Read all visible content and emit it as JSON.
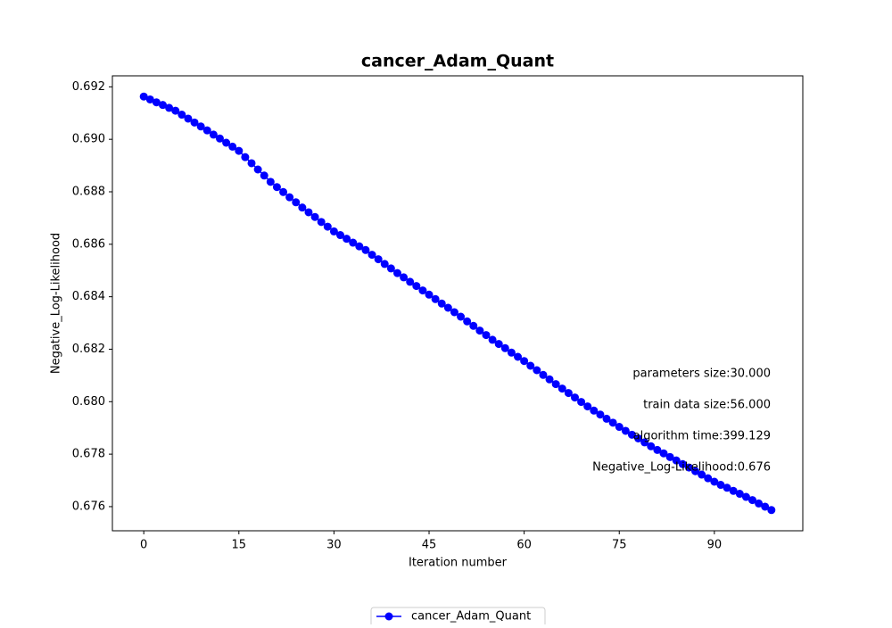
{
  "chart_data": {
    "type": "line",
    "title": "cancer_Adam_Quant",
    "x_label": "Iteration number",
    "y_label": "Negative_Log-Likelihood",
    "x": [
      0,
      1,
      2,
      3,
      4,
      5,
      6,
      7,
      8,
      9,
      10,
      11,
      12,
      13,
      14,
      15,
      16,
      17,
      18,
      19,
      20,
      21,
      22,
      23,
      24,
      25,
      26,
      27,
      28,
      29,
      30,
      31,
      32,
      33,
      34,
      35,
      36,
      37,
      38,
      39,
      40,
      41,
      42,
      43,
      44,
      45,
      46,
      47,
      48,
      49,
      50,
      51,
      52,
      53,
      54,
      55,
      56,
      57,
      58,
      59,
      60,
      61,
      62,
      63,
      64,
      65,
      66,
      67,
      68,
      69,
      70,
      71,
      72,
      73,
      74,
      75,
      76,
      77,
      78,
      79,
      80,
      81,
      82,
      83,
      84,
      85,
      86,
      87,
      88,
      89,
      90,
      91,
      92,
      93,
      94,
      95,
      96,
      97,
      98,
      99
    ],
    "series": [
      {
        "name": "cancer_Adam_Quant",
        "color": "#0000ff",
        "values": [
          0.69163,
          0.69152,
          0.69141,
          0.69131,
          0.6912,
          0.69109,
          0.69094,
          0.69079,
          0.69064,
          0.69049,
          0.69034,
          0.69018,
          0.69003,
          0.68987,
          0.68972,
          0.68956,
          0.68932,
          0.68909,
          0.68885,
          0.68862,
          0.68838,
          0.68818,
          0.68799,
          0.68779,
          0.6876,
          0.6874,
          0.68722,
          0.68704,
          0.68685,
          0.68667,
          0.68649,
          0.68635,
          0.68621,
          0.68606,
          0.68592,
          0.68578,
          0.6856,
          0.68543,
          0.68525,
          0.68508,
          0.6849,
          0.68474,
          0.68457,
          0.68441,
          0.68424,
          0.68408,
          0.68391,
          0.68374,
          0.68358,
          0.68341,
          0.68324,
          0.68306,
          0.68289,
          0.68271,
          0.68254,
          0.68236,
          0.6822,
          0.68204,
          0.68187,
          0.68171,
          0.68155,
          0.68137,
          0.6812,
          0.68102,
          0.68085,
          0.68067,
          0.6805,
          0.68033,
          0.68016,
          0.67999,
          0.67982,
          0.67966,
          0.67951,
          0.67935,
          0.6792,
          0.67904,
          0.67889,
          0.67874,
          0.6786,
          0.67845,
          0.6783,
          0.67816,
          0.67803,
          0.67789,
          0.67776,
          0.67762,
          0.67749,
          0.67735,
          0.67722,
          0.67708,
          0.67695,
          0.67683,
          0.67672,
          0.6766,
          0.67649,
          0.67637,
          0.67625,
          0.67612,
          0.676,
          0.67587
        ]
      }
    ],
    "xlim": [
      -4.95,
      103.95
    ],
    "xticks": [
      0,
      15,
      30,
      45,
      60,
      75,
      90
    ],
    "ylim": [
      0.67508,
      0.69242
    ],
    "yticks": [
      0.676,
      0.678,
      {
        "value": 0.68,
        "label": "0.680"
      },
      0.682,
      0.684,
      0.686,
      0.688,
      {
        "value": 0.69,
        "label": "0.690"
      },
      0.692
    ],
    "annotations": [
      "parameters size:30.000",
      "train data size:56.000",
      "algorithm time:399.129",
      "Negative_Log-Likelihood:0.676"
    ],
    "legend": "lower center",
    "grid": false
  }
}
